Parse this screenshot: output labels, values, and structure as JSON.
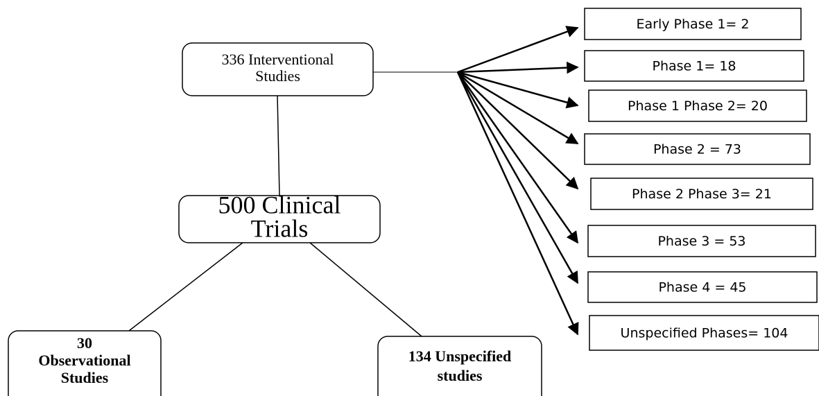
{
  "nodes": [
    {
      "lines": [
        "336 Interventional",
        "Studies"
      ]
    },
    {
      "lines": [
        "500 Clinical",
        "Trials"
      ]
    },
    {
      "lines": [
        "30",
        "Observational",
        "Studies"
      ]
    },
    {
      "lines": [
        "134 Unspecified",
        "studies"
      ]
    }
  ],
  "phases": [
    {
      "label": "Early Phase 1= 2"
    },
    {
      "label": "Phase 1= 18"
    },
    {
      "label": "Phase 1 Phase 2= 20"
    },
    {
      "label": "Phase 2 = 73"
    },
    {
      "label": "Phase 2 Phase 3= 21"
    },
    {
      "label": "Phase 3 = 53"
    },
    {
      "label": "Phase 4 = 45"
    },
    {
      "label": "Unspecified Phases= 104"
    }
  ]
}
